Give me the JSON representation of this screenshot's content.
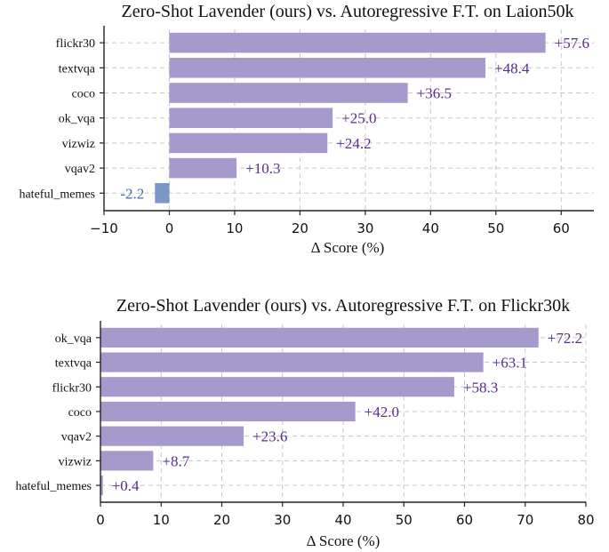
{
  "chart_data": [
    {
      "type": "bar",
      "orientation": "horizontal",
      "title": "Zero-Shot Lavender (ours) vs. Autoregressive F.T. on Laion50k",
      "xlabel": "Δ Score (%)",
      "xlim": [
        -10,
        65
      ],
      "xticks": [
        "−10",
        "0",
        "10",
        "20",
        "30",
        "40",
        "50",
        "60"
      ],
      "xtick_values": [
        -10,
        0,
        10,
        20,
        30,
        40,
        50,
        60
      ],
      "grid": true,
      "categories": [
        "flickr30",
        "textvqa",
        "coco",
        "ok_vqa",
        "vizwiz",
        "vqav2",
        "hateful_memes"
      ],
      "values": [
        57.6,
        48.4,
        36.5,
        25.0,
        24.2,
        10.3,
        -2.2
      ],
      "labels": [
        "+57.6",
        "+48.4",
        "+36.5",
        "+25.0",
        "+24.2",
        "+10.3",
        "-2.2"
      ],
      "positive_color": "#a59acb",
      "negative_color": "#7b96c8",
      "positive_label_color": "#5b2c8e",
      "negative_label_color": "#3e6ea6"
    },
    {
      "type": "bar",
      "orientation": "horizontal",
      "title": "Zero-Shot Lavender (ours) vs. Autoregressive F.T. on Flickr30k",
      "xlabel": "Δ Score (%)",
      "xlim": [
        0,
        80
      ],
      "xticks": [
        "0",
        "10",
        "20",
        "30",
        "40",
        "50",
        "60",
        "70",
        "80"
      ],
      "xtick_values": [
        0,
        10,
        20,
        30,
        40,
        50,
        60,
        70,
        80
      ],
      "grid": true,
      "categories": [
        "ok_vqa",
        "textvqa",
        "flickr30",
        "coco",
        "vqav2",
        "vizwiz",
        "hateful_memes"
      ],
      "values": [
        72.2,
        63.1,
        58.3,
        42.0,
        23.6,
        8.7,
        0.4
      ],
      "labels": [
        "+72.2",
        "+63.1",
        "+58.3",
        "+42.0",
        "+23.6",
        "+8.7",
        "+0.4"
      ],
      "positive_color": "#a59acb",
      "negative_color": "#7b96c8",
      "positive_label_color": "#5b2c8e",
      "negative_label_color": "#3e6ea6"
    }
  ]
}
